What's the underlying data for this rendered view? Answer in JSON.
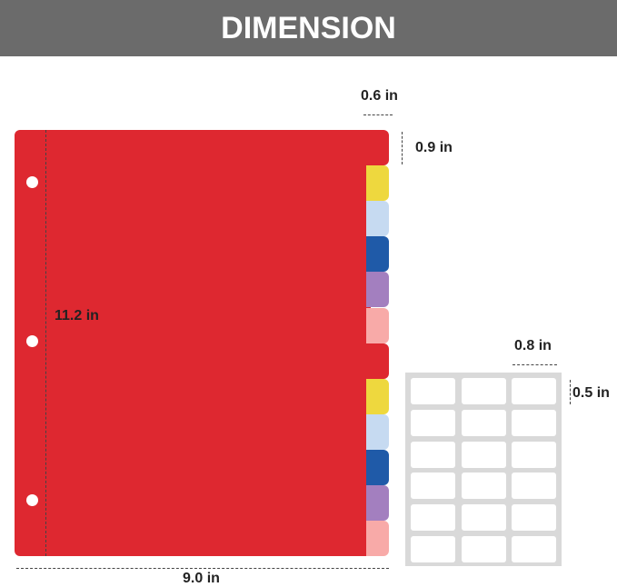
{
  "header": {
    "title": "DIMENSION"
  },
  "divider": {
    "tab_colors": [
      "#de2830",
      "#eed83e",
      "#c6daf1",
      "#1f5aa8",
      "#a37fbf",
      "#f8aaa8",
      "#de2830",
      "#eed83e",
      "#c6daf1",
      "#1f5aa8",
      "#a37fbf",
      "#f8aaa8"
    ],
    "hole_count": 3
  },
  "dimensions": {
    "height": "11.2 in",
    "width": "9.0 in",
    "tab_width": "0.6 in",
    "tab_height": "0.9 in",
    "label_width": "0.8 in",
    "label_height": "0.5 in"
  },
  "label_sheet": {
    "rows": 6,
    "cols": 3
  }
}
